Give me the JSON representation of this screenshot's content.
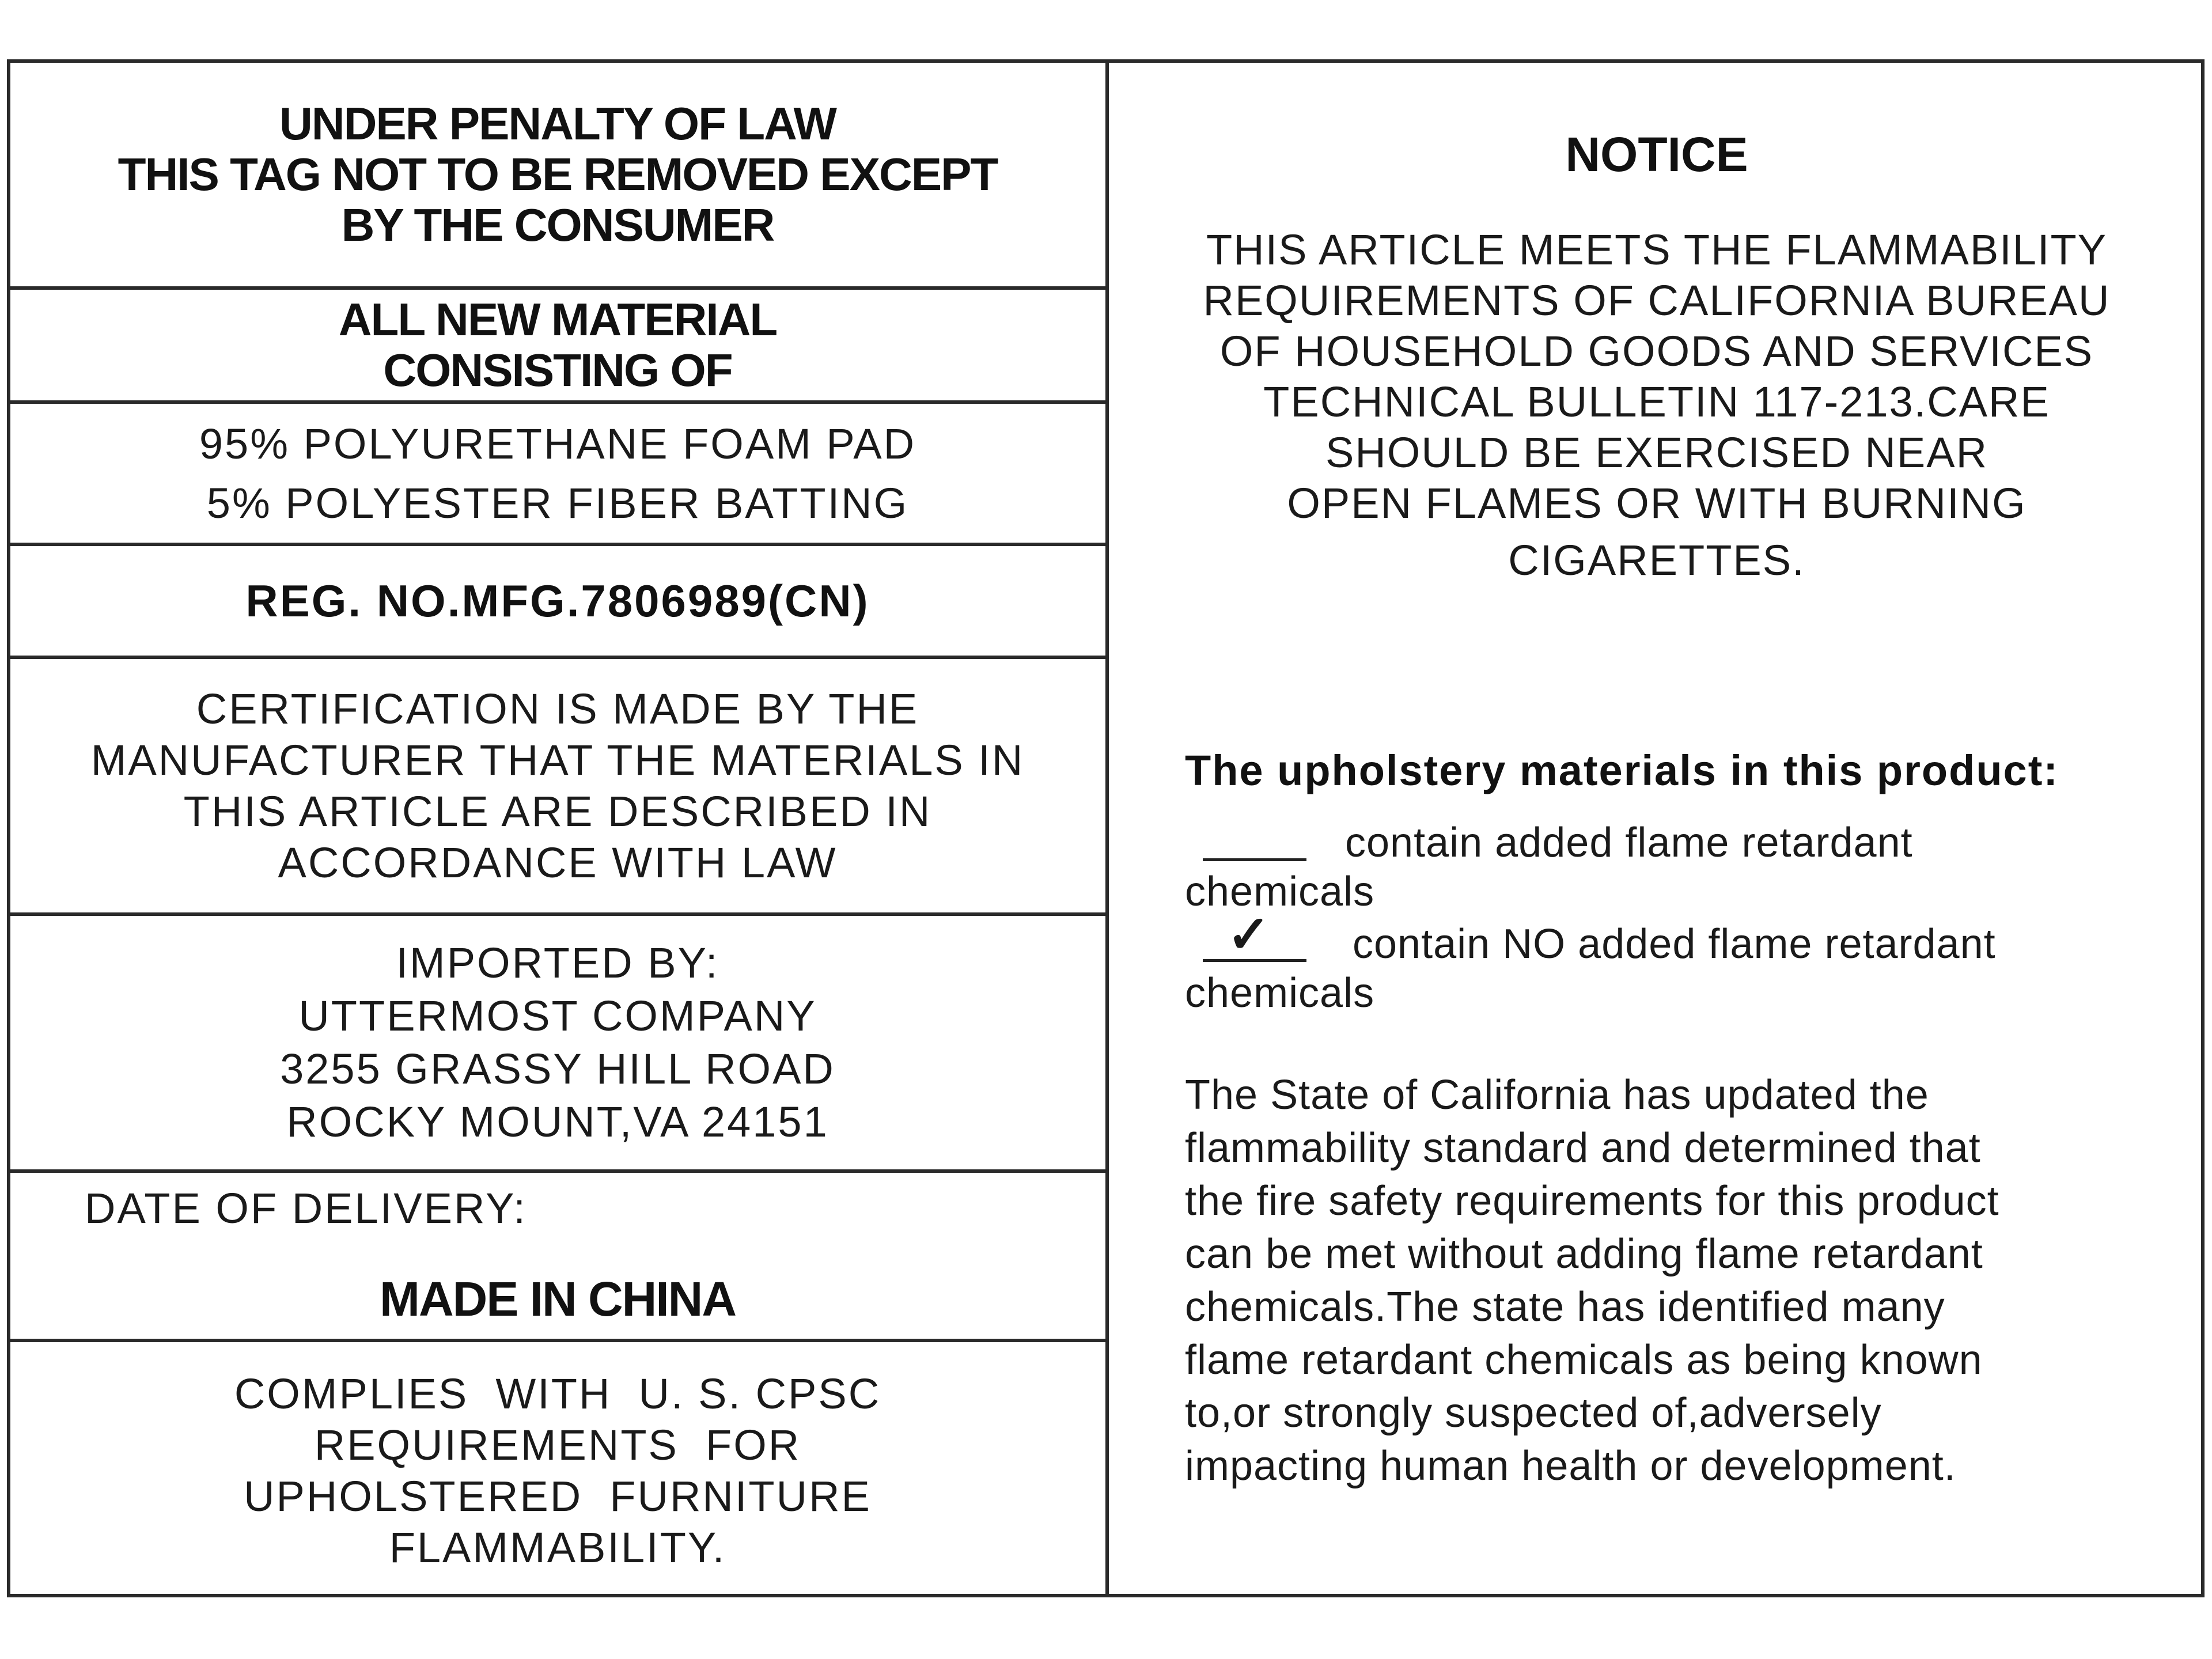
{
  "left": {
    "warning": [
      "UNDER PENALTY OF LAW",
      "THIS TAG NOT TO BE REMOVED EXCEPT",
      "BY THE CONSUMER"
    ],
    "material_heading": [
      "ALL NEW MATERIAL",
      "CONSISTING OF"
    ],
    "materials": [
      "95% POLYURETHANE FOAM PAD",
      "5% POLYESTER FIBER BATTING"
    ],
    "registration": "REG. NO.MFG.7806989(CN)",
    "certification": [
      "CERTIFICATION IS MADE BY THE",
      "MANUFACTURER THAT THE MATERIALS IN",
      "THIS ARTICLE ARE DESCRIBED IN",
      "ACCORDANCE WITH LAW"
    ],
    "importer": [
      "IMPORTED BY:",
      "UTTERMOST COMPANY",
      "3255 GRASSY HILL ROAD",
      "ROCKY MOUNT,VA 24151"
    ],
    "date_of_delivery_label": "DATE OF DELIVERY:",
    "origin": "MADE IN CHINA",
    "compliance": [
      "COMPLIES  WITH  U. S. CPSC",
      "REQUIREMENTS  FOR",
      "UPHOLSTERED  FURNITURE",
      "FLAMMABILITY."
    ]
  },
  "right": {
    "title": "NOTICE",
    "notice_lines": [
      "THIS ARTICLE MEETS THE FLAMMABILITY",
      "REQUIREMENTS OF CALIFORNIA BUREAU",
      "OF HOUSEHOLD GOODS AND SERVICES",
      "TECHNICAL BULLETIN 117-213.CARE",
      "SHOULD BE EXERCISED NEAR",
      "OPEN FLAMES OR WITH BURNING"
    ],
    "notice_last": "CIGARETTES.",
    "upholstery_title": "The upholstery materials in this product:",
    "options": [
      {
        "text": "contain added flame retardant",
        "wrap": "chemicals",
        "checked": false
      },
      {
        "text": "contain NO added flame retardant",
        "wrap": "chemicals",
        "checked": true
      }
    ],
    "check_mark": "✓",
    "statement": [
      "The State of California has updated the",
      "flammability standard and determined that",
      "the fire safety requirements for this product",
      "can be met without adding flame retardant",
      "chemicals.The state has identified many",
      "flame retardant chemicals as being known",
      "to,or strongly suspected of,adversely",
      "impacting human health or development."
    ]
  }
}
